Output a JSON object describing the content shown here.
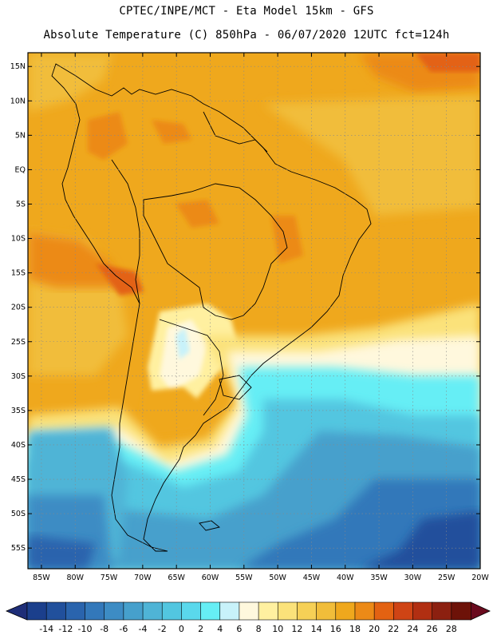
{
  "header": {
    "line1": "CPTEC/INPE/MCT -  Eta Model 15km - GFS",
    "line2": "Absolute Temperature (C) 850hPa - 06/07/2020 12UTC fct=124h"
  },
  "axes": {
    "lat_labels": [
      "15N",
      "10N",
      "5N",
      "EQ",
      "5S",
      "10S",
      "15S",
      "20S",
      "25S",
      "30S",
      "35S",
      "40S",
      "45S",
      "50S",
      "55S"
    ],
    "lat_values": [
      15,
      10,
      5,
      0,
      -5,
      -10,
      -15,
      -20,
      -25,
      -30,
      -35,
      -40,
      -45,
      -50,
      -55
    ],
    "lon_labels": [
      "85W",
      "80W",
      "75W",
      "70W",
      "65W",
      "60W",
      "55W",
      "50W",
      "45W",
      "40W",
      "35W",
      "30W",
      "25W",
      "20W"
    ],
    "lon_values": [
      -85,
      -80,
      -75,
      -70,
      -65,
      -60,
      -55,
      -50,
      -45,
      -40,
      -35,
      -30,
      -25,
      -20
    ],
    "lat_range": [
      -58,
      17
    ],
    "lon_range": [
      -87,
      -20
    ]
  },
  "colorbar": {
    "labels": [
      "-14",
      "-12",
      "-10",
      "-8",
      "-6",
      "-4",
      "-2",
      "0",
      "2",
      "4",
      "6",
      "8",
      "10",
      "12",
      "14",
      "16",
      "18",
      "20",
      "22",
      "24",
      "26",
      "28"
    ],
    "colors": [
      "#1b3f8c",
      "#21509c",
      "#2a64ad",
      "#3378ba",
      "#3d8cc4",
      "#46a0cc",
      "#4fb4d6",
      "#52c6e0",
      "#5ad8ec",
      "#66eef5",
      "#c8f2fa",
      "#fff8dd",
      "#fff0a0",
      "#fbe27a",
      "#f6d056",
      "#f1bd3a",
      "#efa81d",
      "#ec8a17",
      "#e36212",
      "#cf4415",
      "#b12f12",
      "#8c2010",
      "#6d1208"
    ],
    "under_color": "#1e2e78",
    "over_color": "#6a0b1e"
  }
}
